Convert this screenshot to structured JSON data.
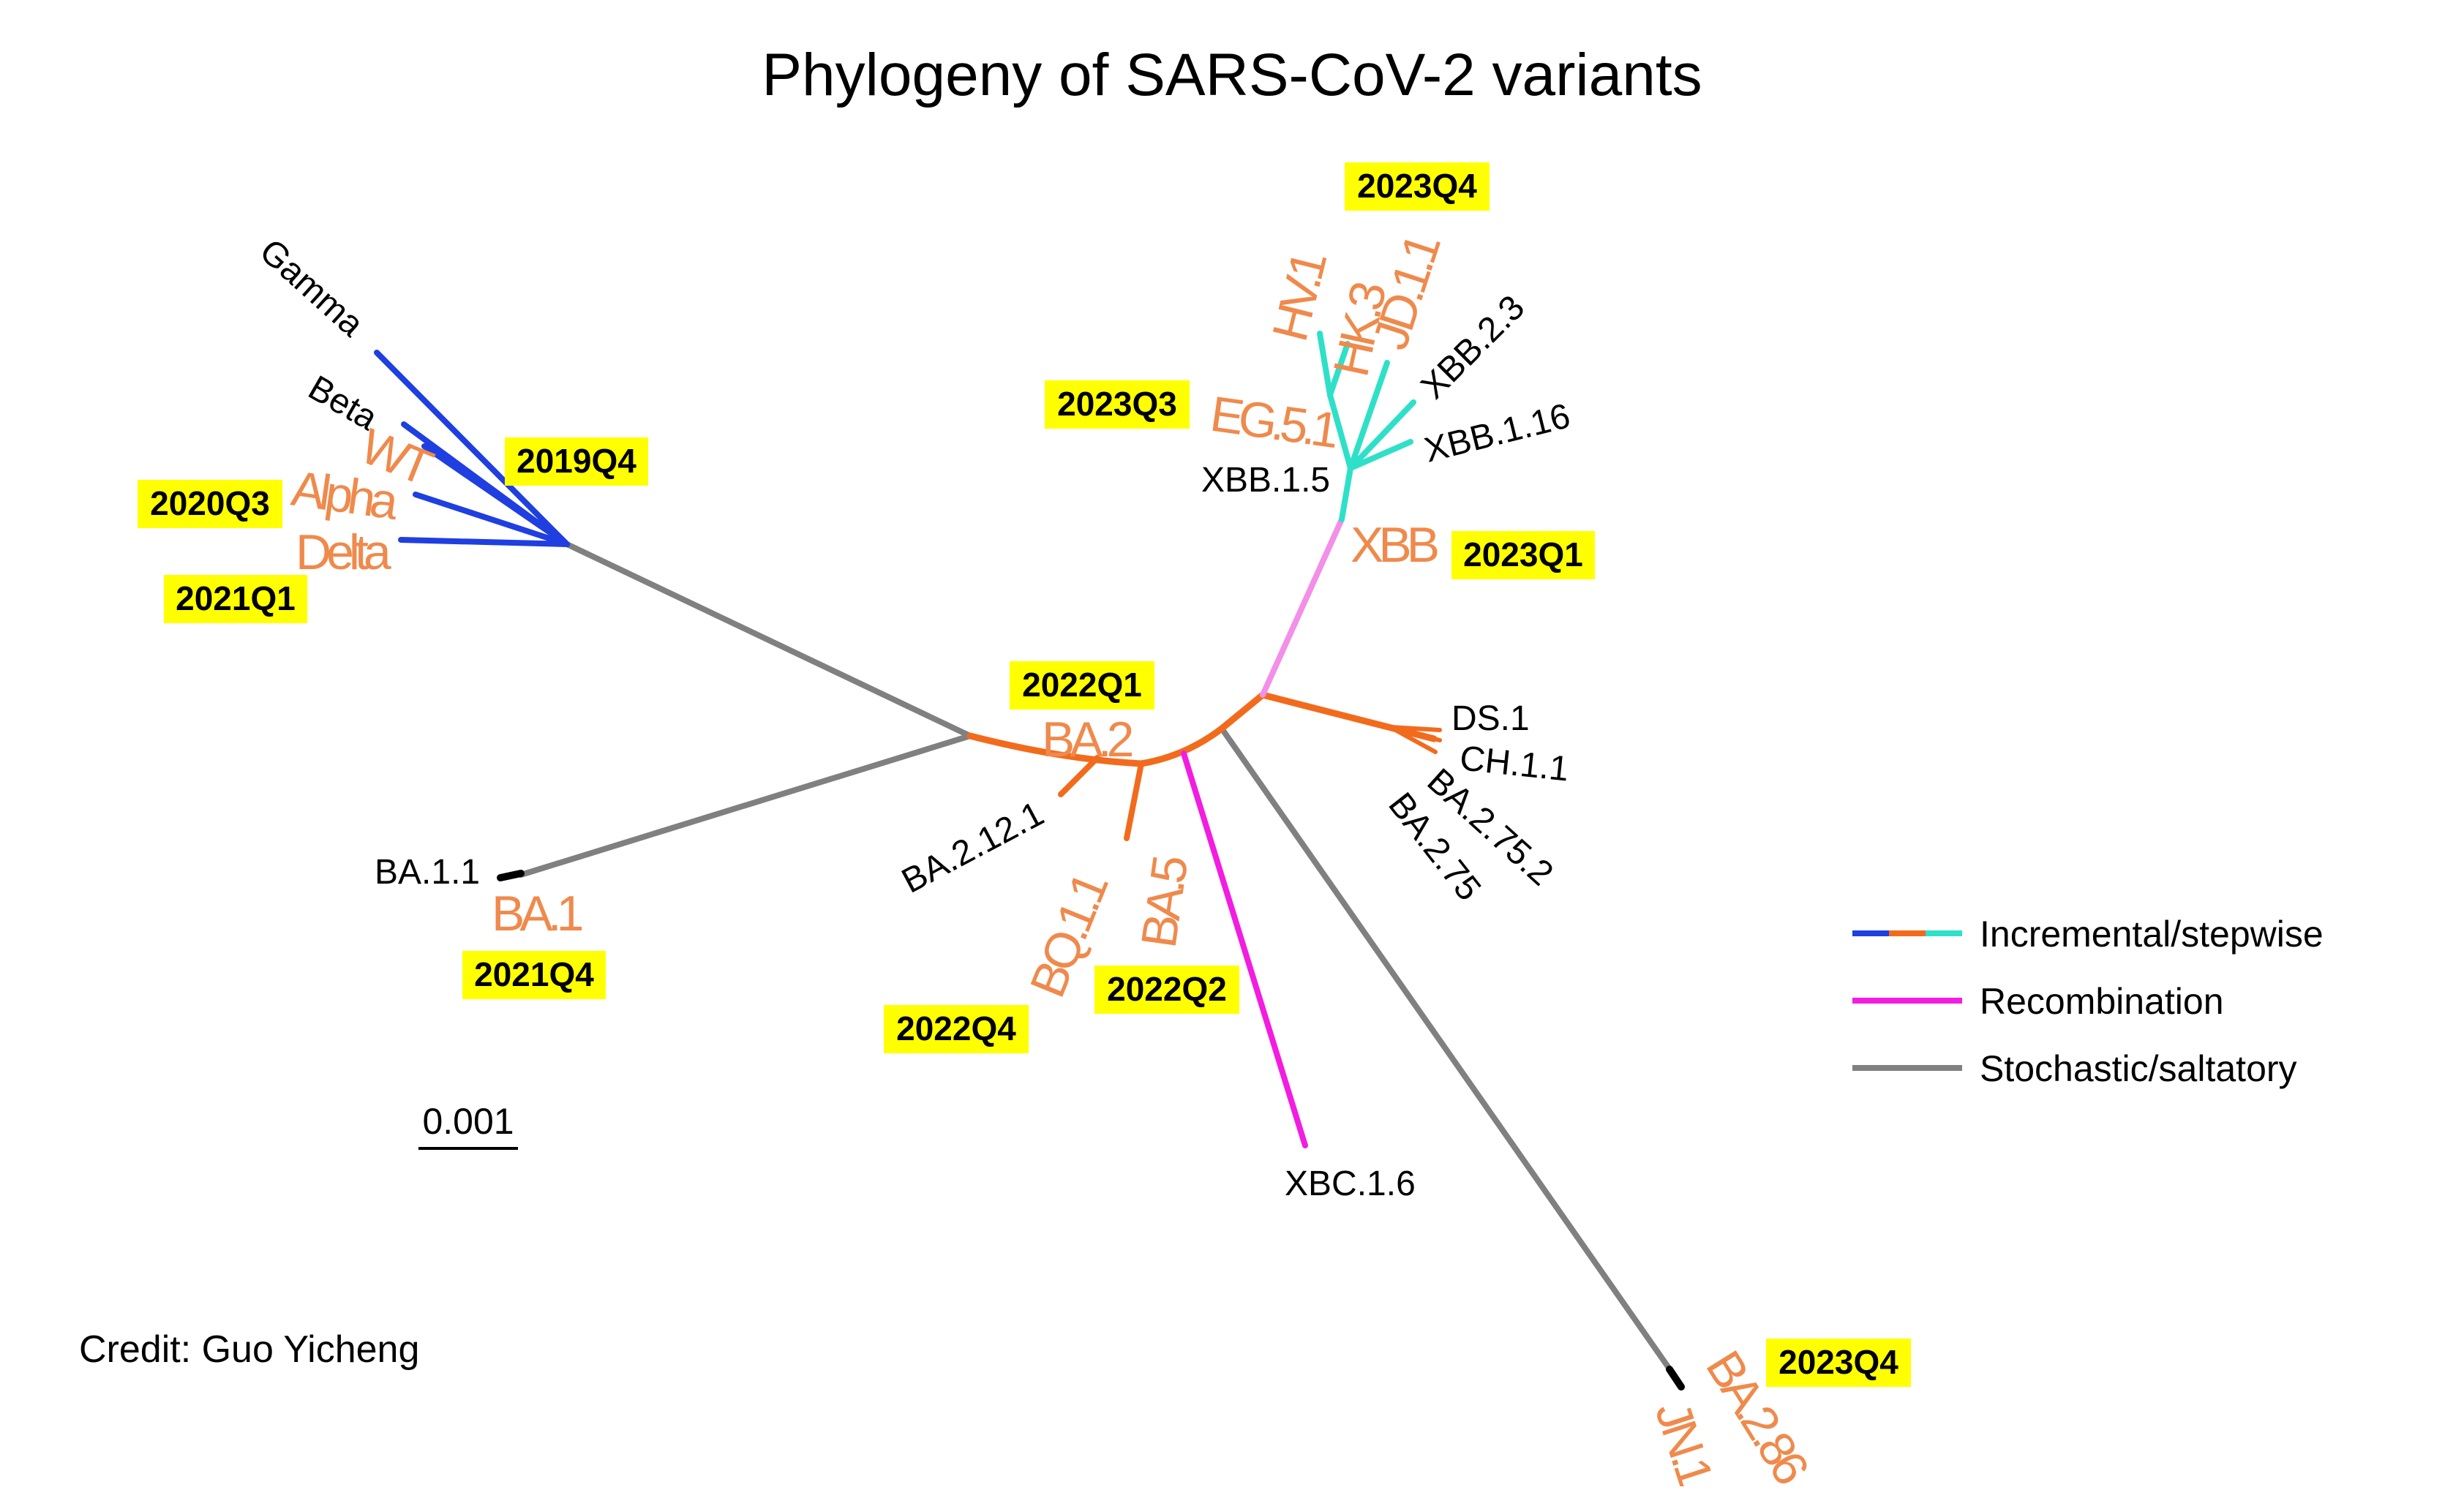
{
  "title": "Phylogeny of SARS-CoV-2 variants",
  "credit": "Credit: Guo Yicheng",
  "scale_bar": {
    "label": "0.001"
  },
  "colors": {
    "blue": "#1f3fe0",
    "orange": "#f26b1d",
    "cyan": "#2fe0c8",
    "magenta": "#f21de0",
    "pink": "#f28fe8",
    "gray": "#808080",
    "label_orange": "#ef8a4c",
    "quarter_bg": "#ffff00"
  },
  "legend": [
    {
      "label": "Incremental/stepwise",
      "style": "tricolor"
    },
    {
      "label": "Recombination",
      "style": "magenta"
    },
    {
      "label": "Stochastic/saltatory",
      "style": "gray"
    }
  ],
  "variants": {
    "gamma": "Gamma",
    "beta": "Beta",
    "wt": "WT",
    "alpha": "Alpha",
    "delta": "Delta",
    "ba1_1": "BA.1.1",
    "ba1": "BA.1",
    "ba2": "BA.2",
    "ba2_12_1": "BA.2.12.1",
    "bq1_1": "BQ.1.1",
    "ba5": "BA.5",
    "xbc1_6": "XBC.1.6",
    "ds1": "DS.1",
    "ch1_1": "CH.1.1",
    "ba2_75_2": "BA.2.75.2",
    "ba2_75": "BA.2.75",
    "xbb": "XBB",
    "xbb1_5": "XBB.1.5",
    "eg5_1": "EG.5.1",
    "hv1": "HV.1",
    "hk3": "HK.3",
    "jd1_1": "JD.1.1",
    "xbb2_3": "XBB.2.3",
    "xbb1_16": "XBB.1.16",
    "ba2_86": "BA.2.86",
    "jn1": "JN.1"
  },
  "quarters": {
    "q2019q4": "2019Q4",
    "q2020q3": "2020Q3",
    "q2021q1": "2021Q1",
    "q2021q4": "2021Q4",
    "q2022q1": "2022Q1",
    "q2022q2": "2022Q2",
    "q2022q4": "2022Q4",
    "q2023q1": "2023Q1",
    "q2023q3": "2023Q3",
    "q2023q4_top": "2023Q4",
    "q2023q4_bottom": "2023Q4"
  }
}
